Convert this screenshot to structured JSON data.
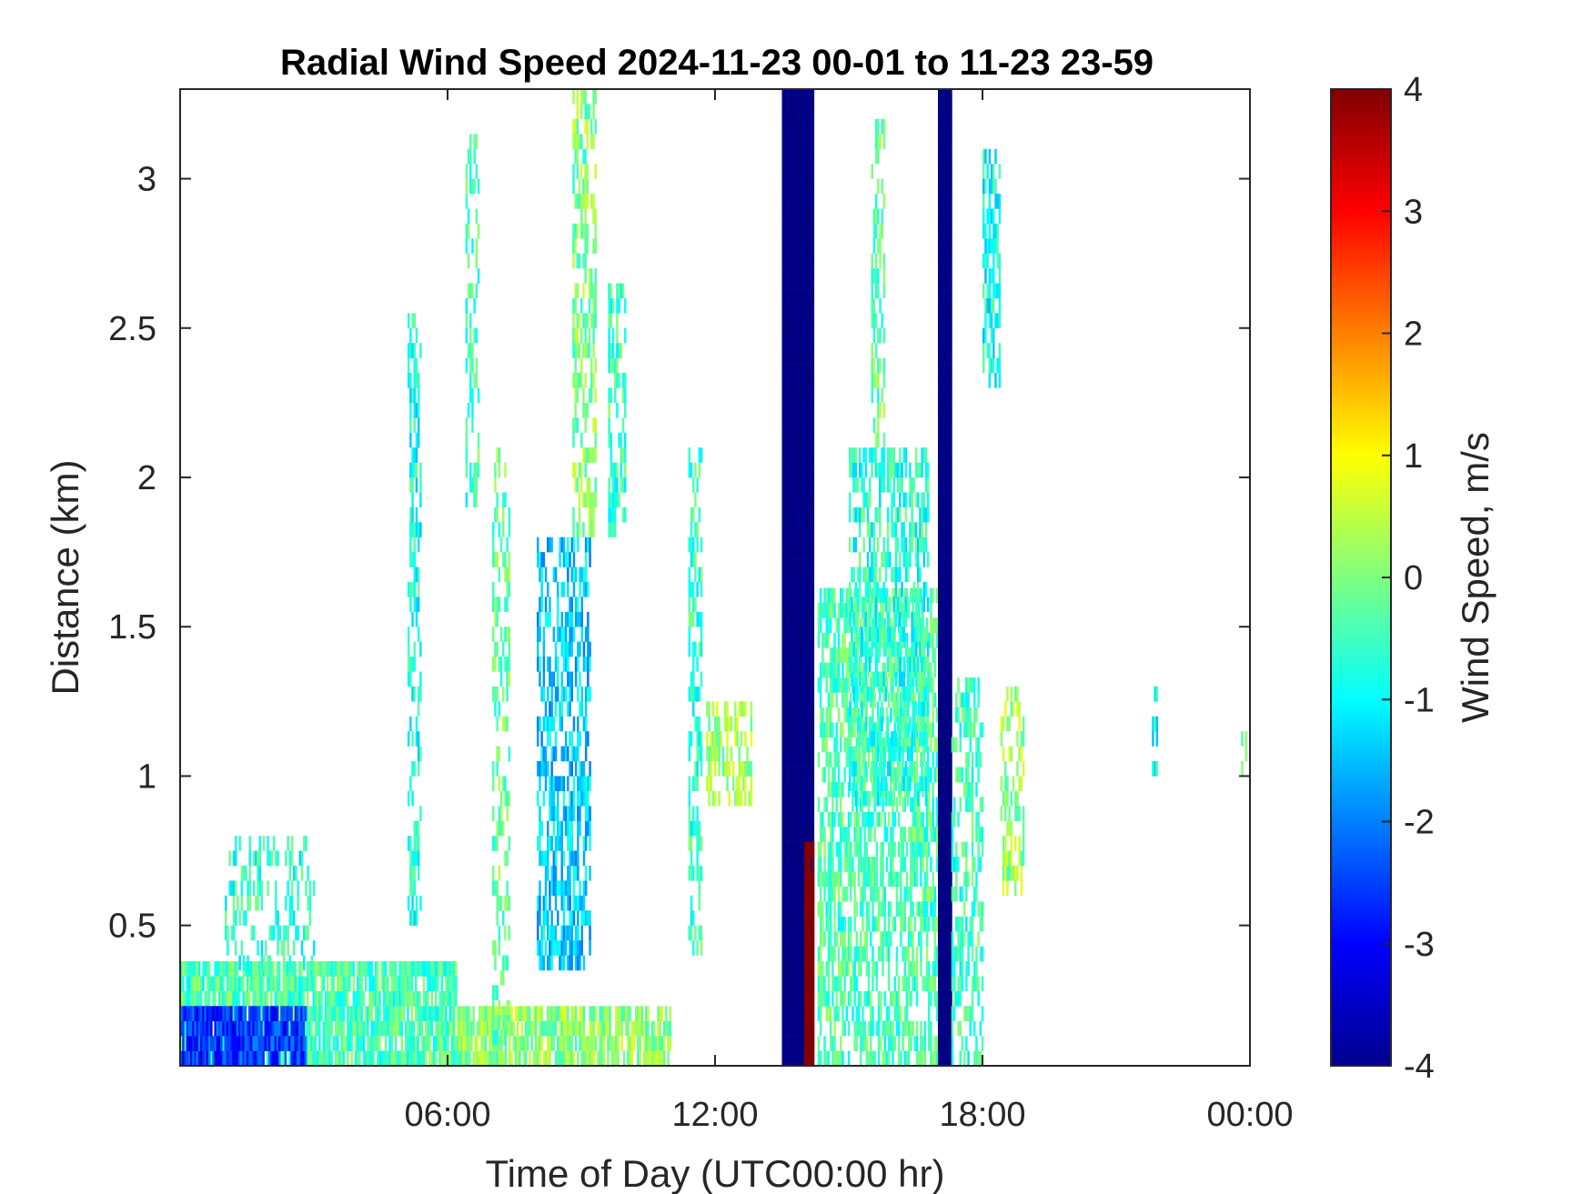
{
  "chart_data": {
    "type": "heatmap",
    "title": "Radial Wind Speed 2024-11-23 00-01 to 11-23 23-59",
    "xlabel": "Time of Day (UTC00:00 hr)",
    "ylabel": "Distance (km)",
    "xlim_hours": [
      0,
      24
    ],
    "ylim_km": [
      0.03,
      3.3
    ],
    "x_ticks": [
      {
        "hour": 6,
        "label": "06:00"
      },
      {
        "hour": 12,
        "label": "12:00"
      },
      {
        "hour": 18,
        "label": "18:00"
      },
      {
        "hour": 24,
        "label": "00:00"
      }
    ],
    "y_ticks": [
      {
        "km": 0.5,
        "label": "0.5"
      },
      {
        "km": 1,
        "label": "1"
      },
      {
        "km": 1.5,
        "label": "1.5"
      },
      {
        "km": 2,
        "label": "2"
      },
      {
        "km": 2.5,
        "label": "2.5"
      },
      {
        "km": 3,
        "label": "3"
      }
    ],
    "colorbar": {
      "label": "Wind Speed, m/s",
      "colormap": "jet",
      "clim": [
        -4,
        4
      ],
      "ticks": [
        {
          "value": 4,
          "label": "4"
        },
        {
          "value": 3,
          "label": "3"
        },
        {
          "value": 2,
          "label": "2"
        },
        {
          "value": 1,
          "label": "1"
        },
        {
          "value": 0,
          "label": "0"
        },
        {
          "value": -1,
          "label": "-1"
        },
        {
          "value": -2,
          "label": "-2"
        },
        {
          "value": -3,
          "label": "-3"
        },
        {
          "value": -4,
          "label": "-4"
        }
      ]
    },
    "grid": false,
    "regions": [
      {
        "t0": 0.0,
        "t1": 6.2,
        "d0": 0.03,
        "d1": 0.35,
        "v": -0.4,
        "density": 0.85
      },
      {
        "t0": 0.0,
        "t1": 2.8,
        "d0": 0.03,
        "d1": 0.2,
        "v": -2.6,
        "density": 0.9
      },
      {
        "t0": 1.0,
        "t1": 3.0,
        "d0": 0.35,
        "d1": 0.8,
        "v": -0.7,
        "density": 0.35
      },
      {
        "t0": 6.2,
        "t1": 11.0,
        "d0": 0.03,
        "d1": 0.2,
        "v": 0.1,
        "density": 0.8
      },
      {
        "t0": 5.1,
        "t1": 5.4,
        "d0": 0.5,
        "d1": 2.5,
        "v": -0.8,
        "density": 0.45
      },
      {
        "t0": 6.4,
        "t1": 6.7,
        "d0": 1.9,
        "d1": 3.1,
        "v": -0.5,
        "density": 0.35
      },
      {
        "t0": 7.0,
        "t1": 7.4,
        "d0": 0.1,
        "d1": 2.1,
        "v": -0.2,
        "density": 0.4
      },
      {
        "t0": 8.0,
        "t1": 9.2,
        "d0": 0.35,
        "d1": 1.8,
        "v": -1.4,
        "density": 0.55
      },
      {
        "t0": 8.8,
        "t1": 9.3,
        "d0": 1.8,
        "d1": 3.3,
        "v": 0.0,
        "density": 0.5
      },
      {
        "t0": 9.6,
        "t1": 10.0,
        "d0": 1.8,
        "d1": 2.6,
        "v": -0.5,
        "density": 0.5
      },
      {
        "t0": 11.4,
        "t1": 11.7,
        "d0": 0.4,
        "d1": 2.1,
        "v": -0.6,
        "density": 0.45
      },
      {
        "t0": 11.8,
        "t1": 12.8,
        "d0": 0.9,
        "d1": 1.25,
        "v": 0.3,
        "density": 0.5
      },
      {
        "t0": 13.5,
        "t1": 14.2,
        "d0": 0.03,
        "d1": 3.3,
        "v": -4.0,
        "density": 1.0
      },
      {
        "t0": 14.0,
        "t1": 14.2,
        "d0": 0.03,
        "d1": 0.75,
        "v": 4.0,
        "density": 0.95
      },
      {
        "t0": 14.3,
        "t1": 17.0,
        "d0": 0.03,
        "d1": 1.6,
        "v": -0.4,
        "density": 0.6
      },
      {
        "t0": 15.0,
        "t1": 16.8,
        "d0": 0.9,
        "d1": 2.1,
        "v": -0.7,
        "density": 0.55
      },
      {
        "t0": 15.5,
        "t1": 15.8,
        "d0": 2.1,
        "d1": 3.15,
        "v": -0.2,
        "density": 0.45
      },
      {
        "t0": 17.0,
        "t1": 17.3,
        "d0": 0.03,
        "d1": 3.3,
        "v": -4.0,
        "density": 1.0
      },
      {
        "t0": 17.3,
        "t1": 18.0,
        "d0": 0.03,
        "d1": 1.3,
        "v": -0.5,
        "density": 0.45
      },
      {
        "t0": 18.0,
        "t1": 18.4,
        "d0": 2.3,
        "d1": 3.05,
        "v": -0.9,
        "density": 0.55
      },
      {
        "t0": 18.4,
        "t1": 18.9,
        "d0": 0.6,
        "d1": 1.3,
        "v": 0.2,
        "density": 0.45
      },
      {
        "t0": 21.8,
        "t1": 21.9,
        "d0": 1.0,
        "d1": 1.3,
        "v": -0.8,
        "density": 0.35
      },
      {
        "t0": 23.8,
        "t1": 23.9,
        "d0": 1.0,
        "d1": 1.15,
        "v": -0.6,
        "density": 0.5
      }
    ]
  }
}
